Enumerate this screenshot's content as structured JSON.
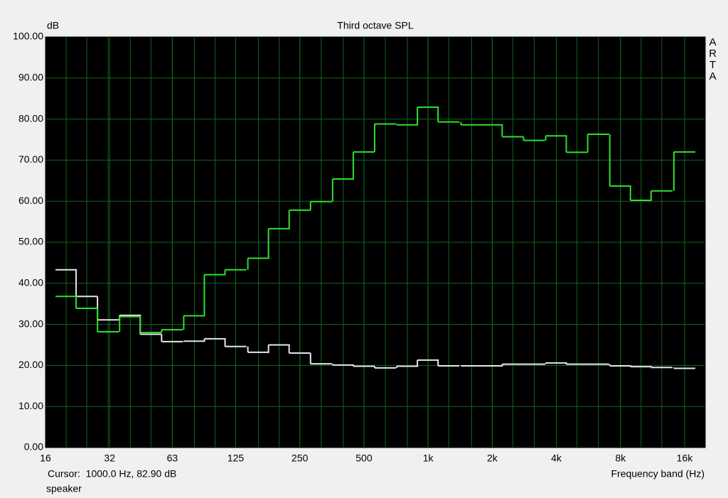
{
  "chart_data": {
    "type": "step",
    "title": "Third octave SPL",
    "y_label": "dB",
    "x_label": "Frequency band (Hz)",
    "watermark": "ARTA",
    "cursor_text": "Cursor:  1000.0 Hz, 82.90 dB",
    "note": "speaker",
    "log_x": true,
    "grid": true,
    "grid_color": "#14641e",
    "background": "#000000",
    "x": [
      20,
      25,
      31.5,
      40,
      50,
      63,
      80,
      100,
      125,
      160,
      200,
      250,
      315,
      400,
      500,
      630,
      800,
      1000,
      1250,
      1600,
      2000,
      2500,
      3150,
      4000,
      5000,
      6300,
      8000,
      10000,
      12500,
      16000
    ],
    "series": [
      {
        "color": "#2ee02e",
        "values": [
          36.8,
          33.9,
          28.2,
          31.9,
          28.0,
          28.7,
          32.1,
          42.1,
          43.3,
          46.1,
          53.3,
          57.8,
          59.9,
          65.4,
          72.0,
          78.8,
          78.6,
          82.9,
          79.3,
          78.6,
          78.6,
          75.7,
          74.8,
          75.9,
          71.9,
          76.3,
          63.7,
          60.2,
          62.5,
          72.0
        ]
      },
      {
        "color": "#e6e6e6",
        "values": [
          43.3,
          36.8,
          31.1,
          32.2,
          27.6,
          25.8,
          25.9,
          26.5,
          24.6,
          23.2,
          25.0,
          23.0,
          20.4,
          20.1,
          19.8,
          19.4,
          19.8,
          21.3,
          19.9,
          19.9,
          19.9,
          20.3,
          20.3,
          20.6,
          20.3,
          20.3,
          19.9,
          19.7,
          19.5,
          19.3
        ]
      }
    ],
    "xlim": [
      16,
      20000
    ],
    "xticks": [
      16,
      32,
      63,
      125,
      250,
      500,
      {
        "value": 1000,
        "label": "1k"
      },
      {
        "value": 2000,
        "label": "2k"
      },
      {
        "value": 4000,
        "label": "4k"
      },
      {
        "value": 8000,
        "label": "8k"
      },
      {
        "value": 16000,
        "label": "16k"
      }
    ],
    "ylim": [
      0,
      100
    ],
    "yticks": [
      {
        "value": 0,
        "label": "0.00"
      },
      {
        "value": 10,
        "label": "10.00"
      },
      {
        "value": 20,
        "label": "20.00"
      },
      {
        "value": 30,
        "label": "30.00"
      },
      {
        "value": 40,
        "label": "40.00"
      },
      {
        "value": 50,
        "label": "50.00"
      },
      {
        "value": 60,
        "label": "60.00"
      },
      {
        "value": 70,
        "label": "70.00"
      },
      {
        "value": 80,
        "label": "80.00"
      },
      {
        "value": 90,
        "label": "90.00"
      },
      {
        "value": 100,
        "label": "100.00"
      }
    ]
  }
}
